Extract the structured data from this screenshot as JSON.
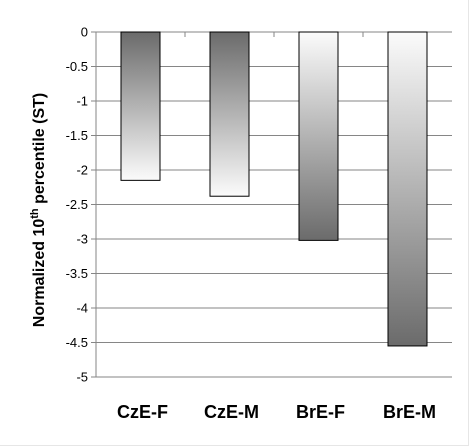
{
  "chart_data": {
    "type": "bar",
    "categories": [
      "CzE-F",
      "CzE-M",
      "BrE-F",
      "BrE-M"
    ],
    "values": [
      -2.15,
      -2.38,
      -3.02,
      -4.55
    ],
    "ylabel": {
      "prefix": "Normalized 10",
      "superscript": "th",
      "suffix": " percentile (ST)"
    },
    "ylim": [
      -5,
      0
    ],
    "yticks": [
      0,
      -0.5,
      -1,
      -1.5,
      -2,
      -2.5,
      -3,
      -3.5,
      -4,
      -4.5,
      -5
    ],
    "ytick_labels": [
      "0",
      "-0.5",
      "-1",
      "-1.5",
      "-2",
      "-2.5",
      "-3",
      "-3.5",
      "-4",
      "-4.5",
      "-5"
    ],
    "grid": true,
    "gradient_direction": [
      "dark-to-light",
      "dark-to-light",
      "light-to-dark",
      "light-to-dark"
    ],
    "colors": {
      "dark": "#6b6b6b",
      "light": "#fbfbfb",
      "grid": "#868686",
      "bar_edge": "#000000"
    }
  }
}
